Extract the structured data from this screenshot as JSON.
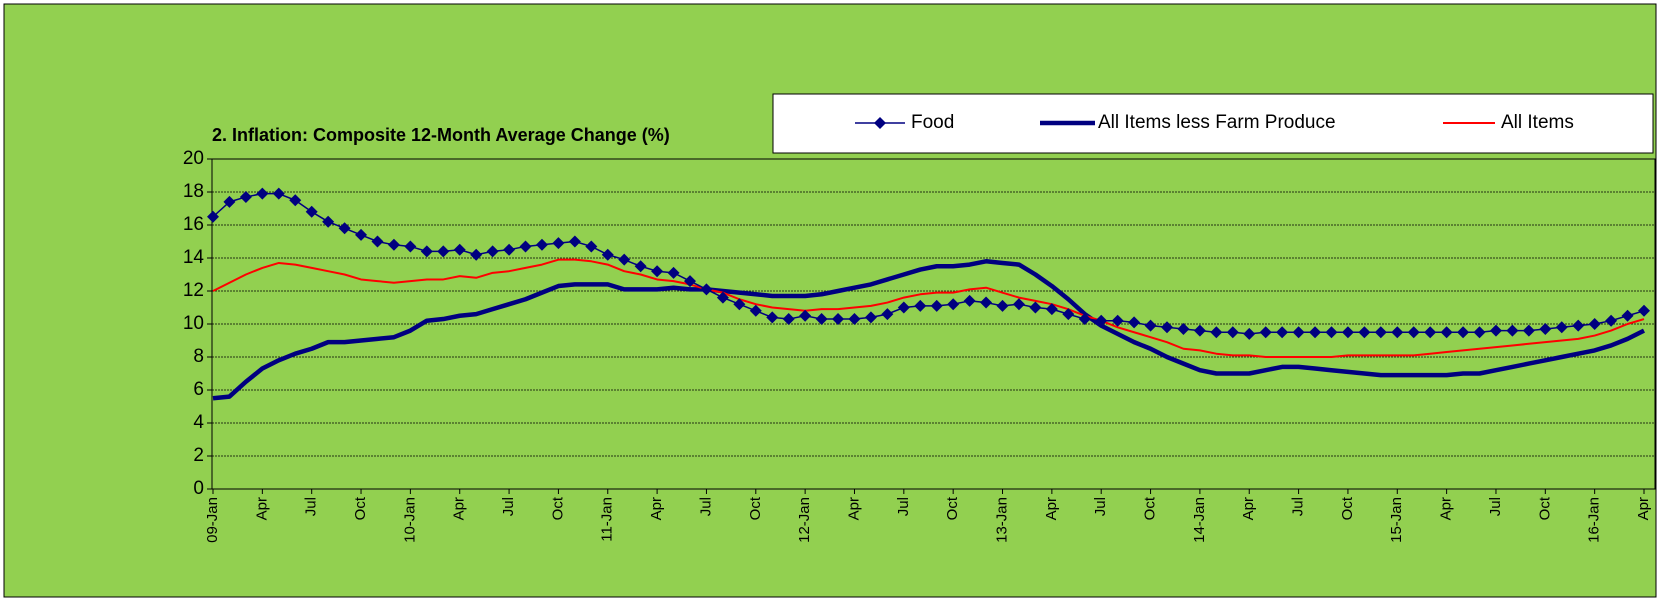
{
  "chart_data": {
    "type": "line",
    "title": "2. Inflation: Composite 12-Month Average Change (%)",
    "categories": [
      "09-Jan",
      null,
      null,
      "Apr",
      null,
      null,
      "Jul",
      null,
      null,
      "Oct",
      null,
      null,
      "10-Jan",
      null,
      null,
      "Apr",
      null,
      null,
      "Jul",
      null,
      null,
      "Oct",
      null,
      null,
      "11-Jan",
      null,
      null,
      "Apr",
      null,
      null,
      "Jul",
      null,
      null,
      "Oct",
      null,
      null,
      "12-Jan",
      null,
      null,
      "Apr",
      null,
      null,
      "Jul",
      null,
      null,
      "Oct",
      null,
      null,
      "13-Jan",
      null,
      null,
      "Apr",
      null,
      null,
      "Jul",
      null,
      null,
      "Oct",
      null,
      null,
      "14-Jan",
      null,
      null,
      "Apr",
      null,
      null,
      "Jul",
      null,
      null,
      "Oct",
      null,
      null,
      "15-Jan",
      null,
      null,
      "Apr",
      null,
      null,
      "Jul",
      null,
      null,
      "Oct",
      null,
      null,
      "16-Jan",
      null,
      null,
      "Apr"
    ],
    "series": [
      {
        "name": "Food",
        "color": "#000080",
        "marker": "diamond",
        "values": [
          16.5,
          17.4,
          17.7,
          17.9,
          17.9,
          17.5,
          16.8,
          16.2,
          15.8,
          15.4,
          15.0,
          14.8,
          14.7,
          14.4,
          14.4,
          14.5,
          14.2,
          14.4,
          14.5,
          14.7,
          14.8,
          14.9,
          15.0,
          14.7,
          14.2,
          13.9,
          13.5,
          13.2,
          13.1,
          12.6,
          12.1,
          11.6,
          11.2,
          10.8,
          10.4,
          10.3,
          10.5,
          10.3,
          10.3,
          10.3,
          10.4,
          10.6,
          11.0,
          11.1,
          11.1,
          11.2,
          11.4,
          11.3,
          11.1,
          11.2,
          11.0,
          10.9,
          10.6,
          10.3,
          10.2,
          10.2,
          10.1,
          9.9,
          9.8,
          9.7,
          9.6,
          9.5,
          9.5,
          9.4,
          9.5,
          9.5,
          9.5,
          9.5,
          9.5,
          9.5,
          9.5,
          9.5,
          9.5,
          9.5,
          9.5,
          9.5,
          9.5,
          9.5,
          9.6,
          9.6,
          9.6,
          9.7,
          9.8,
          9.9,
          10.0,
          10.2,
          10.5,
          10.8
        ]
      },
      {
        "name": "All Items less Farm Produce",
        "color": "#000080",
        "values": [
          5.5,
          5.6,
          6.5,
          7.3,
          7.8,
          8.2,
          8.5,
          8.9,
          8.9,
          9.0,
          9.1,
          9.2,
          9.6,
          10.2,
          10.3,
          10.5,
          10.6,
          10.9,
          11.2,
          11.5,
          11.9,
          12.3,
          12.4,
          12.4,
          12.4,
          12.1,
          12.1,
          12.1,
          12.2,
          12.1,
          12.1,
          12.0,
          11.9,
          11.8,
          11.7,
          11.7,
          11.7,
          11.8,
          12.0,
          12.2,
          12.4,
          12.7,
          13.0,
          13.3,
          13.5,
          13.5,
          13.6,
          13.8,
          13.7,
          13.6,
          13.0,
          12.3,
          11.5,
          10.6,
          9.9,
          9.4,
          8.9,
          8.5,
          8.0,
          7.6,
          7.2,
          7.0,
          7.0,
          7.0,
          7.2,
          7.4,
          7.4,
          7.3,
          7.2,
          7.1,
          7.0,
          6.9,
          6.9,
          6.9,
          6.9,
          6.9,
          7.0,
          7.0,
          7.2,
          7.4,
          7.6,
          7.8,
          8.0,
          8.2,
          8.4,
          8.7,
          9.1,
          9.6
        ]
      },
      {
        "name": "All Items",
        "color": "#ff0000",
        "values": [
          12.0,
          12.5,
          13.0,
          13.4,
          13.7,
          13.6,
          13.4,
          13.2,
          13.0,
          12.7,
          12.6,
          12.5,
          12.6,
          12.7,
          12.7,
          12.9,
          12.8,
          13.1,
          13.2,
          13.4,
          13.6,
          13.9,
          13.9,
          13.8,
          13.6,
          13.2,
          13.0,
          12.7,
          12.6,
          12.4,
          12.1,
          11.9,
          11.5,
          11.2,
          11.0,
          10.9,
          10.8,
          10.9,
          10.9,
          11.0,
          11.1,
          11.3,
          11.6,
          11.8,
          11.9,
          11.9,
          12.1,
          12.2,
          11.9,
          11.6,
          11.4,
          11.2,
          10.9,
          10.5,
          10.2,
          9.8,
          9.5,
          9.2,
          8.9,
          8.5,
          8.4,
          8.2,
          8.1,
          8.1,
          8.0,
          8.0,
          8.0,
          8.0,
          8.0,
          8.1,
          8.1,
          8.1,
          8.1,
          8.1,
          8.2,
          8.3,
          8.4,
          8.5,
          8.6,
          8.7,
          8.8,
          8.9,
          9.0,
          9.1,
          9.3,
          9.6,
          10.0,
          10.3
        ]
      }
    ],
    "ylim": [
      0,
      20
    ],
    "yticks": [
      0,
      2,
      4,
      6,
      8,
      10,
      12,
      14,
      16,
      18,
      20
    ],
    "grid": true,
    "legend": "top-right"
  }
}
